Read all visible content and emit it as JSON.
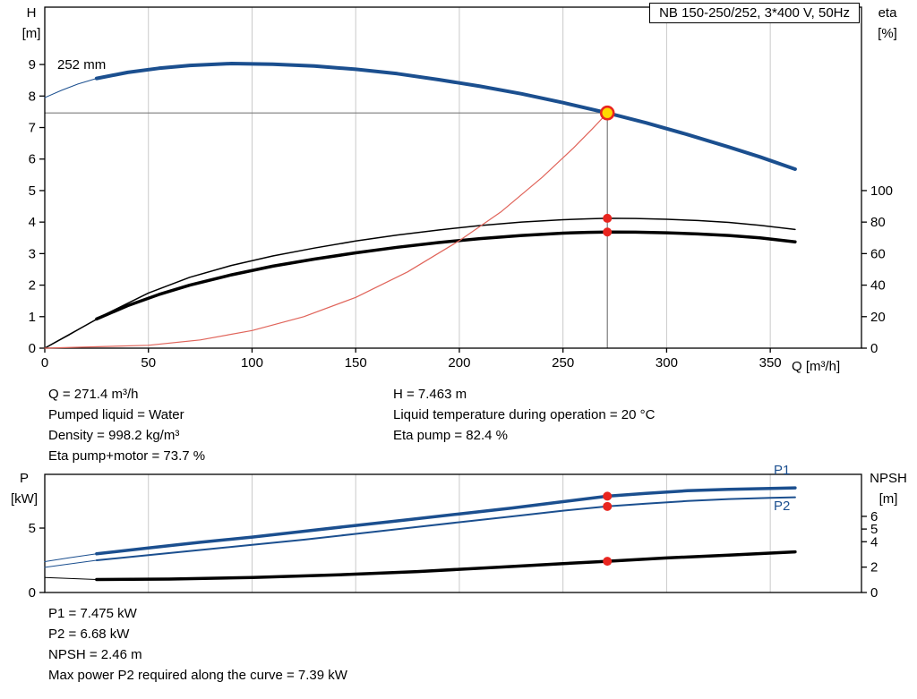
{
  "title_box": {
    "label": "NB 150-250/252, 3*400 V, 50Hz"
  },
  "colors": {
    "curve_blue": "#1b4f8f",
    "curve_black": "#000000",
    "curve_red": "#e0645a",
    "dot_red": "#e8251f",
    "op_fill": "#ffd800",
    "grid": "#c9c9c9",
    "op_line": "#7b7b7b",
    "axis": "#000000"
  },
  "labels": {
    "impeller": "252 mm",
    "h_title": "H",
    "h_unit": "[m]",
    "eta_title": "eta",
    "eta_unit": "[%]",
    "x_axis": "Q [m³/h]",
    "p_title": "P",
    "p_unit": "[kW]",
    "npsh_title": "NPSH",
    "npsh_unit": "[m]",
    "p1": "P1",
    "p2": "P2"
  },
  "info": {
    "left": [
      "Q = 271.4 m³/h",
      "Pumped liquid = Water",
      "Density = 998.2 kg/m³",
      "Eta pump+motor = 73.7 %"
    ],
    "right": [
      "H = 7.463 m",
      "Liquid temperature during operation = 20 °C",
      "Eta pump = 82.4 %"
    ],
    "bottom": [
      "P1 = 7.475 kW",
      "P2 = 6.68 kW",
      "NPSH = 2.46 m",
      "Max power P2 required along the curve = 7.39 kW"
    ]
  },
  "chart_data": [
    {
      "id": "qh-eta-chart",
      "type": "line",
      "title": "NB 150-250/252, 3*400 V, 50Hz",
      "xlabel": "Q [m³/h]",
      "ylabel": "H [m]",
      "y2label": "eta [%]",
      "xlim": [
        0,
        394
      ],
      "ylim": [
        0,
        10.82
      ],
      "y2lim": [
        0,
        216.4
      ],
      "x_ticks": [
        0,
        50,
        100,
        150,
        200,
        250,
        300,
        350
      ],
      "y_ticks": [
        0,
        1,
        2,
        3,
        4,
        5,
        6,
        7,
        8,
        9
      ],
      "y2_ticks": [
        0,
        20,
        40,
        60,
        80,
        100
      ],
      "show_x_labels": true,
      "grid": "vertical",
      "legend_position": "none",
      "operating_point": {
        "q": 271.4,
        "h": 7.463
      },
      "series": [
        {
          "name": "head-252mm-lead",
          "axis": "y",
          "color": "blue",
          "width": 1,
          "points": [
            [
              0,
              7.95
            ],
            [
              8,
              8.18
            ],
            [
              16,
              8.38
            ],
            [
              25,
              8.56
            ]
          ]
        },
        {
          "name": "head-252mm",
          "axis": "y",
          "color": "blue",
          "width": 4,
          "points": [
            [
              25,
              8.56
            ],
            [
              40,
              8.75
            ],
            [
              55,
              8.88
            ],
            [
              70,
              8.97
            ],
            [
              90,
              9.03
            ],
            [
              110,
              9.01
            ],
            [
              130,
              8.95
            ],
            [
              150,
              8.85
            ],
            [
              170,
              8.71
            ],
            [
              190,
              8.52
            ],
            [
              210,
              8.31
            ],
            [
              230,
              8.07
            ],
            [
              250,
              7.79
            ],
            [
              271.4,
              7.463
            ],
            [
              290,
              7.15
            ],
            [
              310,
              6.78
            ],
            [
              330,
              6.38
            ],
            [
              345,
              6.07
            ],
            [
              362,
              5.68
            ]
          ]
        },
        {
          "name": "eta-pump",
          "axis": "y2",
          "color": "black",
          "width": 1.5,
          "points": [
            [
              0,
              0
            ],
            [
              15,
              11
            ],
            [
              30,
              22
            ],
            [
              50,
              35
            ],
            [
              70,
              45
            ],
            [
              90,
              52.5
            ],
            [
              110,
              58.5
            ],
            [
              130,
              63.5
            ],
            [
              150,
              68
            ],
            [
              170,
              71.8
            ],
            [
              190,
              75
            ],
            [
              210,
              77.8
            ],
            [
              230,
              80
            ],
            [
              250,
              81.5
            ],
            [
              262,
              82.1
            ],
            [
              271.4,
              82.4
            ],
            [
              285,
              82.3
            ],
            [
              300,
              81.8
            ],
            [
              315,
              81
            ],
            [
              330,
              79.8
            ],
            [
              345,
              78
            ],
            [
              362,
              75.3
            ]
          ]
        },
        {
          "name": "eta-pump-motor-lead",
          "axis": "y2",
          "color": "black",
          "width": 1,
          "points": [
            [
              0,
              0
            ],
            [
              12,
              8.5
            ],
            [
              25,
              18.5
            ]
          ]
        },
        {
          "name": "eta-pump-motor",
          "axis": "y2",
          "color": "black",
          "width": 3.5,
          "points": [
            [
              25,
              18.5
            ],
            [
              40,
              27
            ],
            [
              55,
              34
            ],
            [
              70,
              40
            ],
            [
              90,
              46.5
            ],
            [
              110,
              52
            ],
            [
              130,
              56.5
            ],
            [
              150,
              60.5
            ],
            [
              170,
              64
            ],
            [
              190,
              67
            ],
            [
              210,
              69.5
            ],
            [
              230,
              71.5
            ],
            [
              250,
              73
            ],
            [
              262,
              73.5
            ],
            [
              271.4,
              73.7
            ],
            [
              285,
              73.6
            ],
            [
              300,
              73.2
            ],
            [
              315,
              72.5
            ],
            [
              330,
              71.5
            ],
            [
              345,
              70
            ],
            [
              362,
              67.5
            ]
          ]
        },
        {
          "name": "system-curve",
          "axis": "y",
          "color": "red",
          "width": 1.2,
          "points": [
            [
              0,
              0
            ],
            [
              50,
              0.09
            ],
            [
              75,
              0.26
            ],
            [
              100,
              0.56
            ],
            [
              125,
              1.0
            ],
            [
              150,
              1.61
            ],
            [
              175,
              2.42
            ],
            [
              200,
              3.41
            ],
            [
              220,
              4.32
            ],
            [
              240,
              5.42
            ],
            [
              255,
              6.35
            ],
            [
              264,
              6.95
            ],
            [
              271.4,
              7.463
            ]
          ]
        }
      ],
      "markers": [
        {
          "type": "op",
          "q": 271.4,
          "value": 7.463,
          "axis": "y"
        },
        {
          "type": "dot",
          "q": 271.4,
          "value": 82.4,
          "axis": "y2"
        },
        {
          "type": "dot",
          "q": 271.4,
          "value": 73.7,
          "axis": "y2"
        }
      ]
    },
    {
      "id": "power-npsh-chart",
      "type": "line",
      "ylabel": "P [kW]",
      "y2label": "NPSH [m]",
      "xlim": [
        0,
        394
      ],
      "ylim": [
        0,
        9.17
      ],
      "y2lim": [
        0,
        9.31
      ],
      "x_ticks": [
        0,
        50,
        100,
        150,
        200,
        250,
        300,
        350
      ],
      "y_ticks": [
        0,
        5
      ],
      "y2_ticks": [
        0,
        2,
        4,
        5,
        6
      ],
      "show_x_labels": false,
      "grid": "vertical",
      "series": [
        {
          "name": "p1-lead",
          "axis": "y",
          "color": "blue",
          "width": 1,
          "points": [
            [
              0,
              2.4
            ],
            [
              12,
              2.7
            ],
            [
              25,
              3.0
            ]
          ]
        },
        {
          "name": "p1",
          "axis": "y",
          "color": "blue",
          "width": 3.5,
          "points": [
            [
              25,
              3.0
            ],
            [
              50,
              3.45
            ],
            [
              75,
              3.9
            ],
            [
              100,
              4.3
            ],
            [
              125,
              4.75
            ],
            [
              150,
              5.2
            ],
            [
              175,
              5.65
            ],
            [
              200,
              6.1
            ],
            [
              225,
              6.55
            ],
            [
              250,
              7.05
            ],
            [
              271.4,
              7.475
            ],
            [
              290,
              7.7
            ],
            [
              310,
              7.9
            ],
            [
              330,
              8.0
            ],
            [
              350,
              8.08
            ],
            [
              362,
              8.12
            ]
          ]
        },
        {
          "name": "p2-lead",
          "axis": "y",
          "color": "blue",
          "width": 1,
          "points": [
            [
              0,
              1.95
            ],
            [
              25,
              2.5
            ]
          ]
        },
        {
          "name": "p2",
          "axis": "y",
          "color": "blue",
          "width": 2,
          "points": [
            [
              25,
              2.5
            ],
            [
              50,
              2.9
            ],
            [
              75,
              3.3
            ],
            [
              100,
              3.7
            ],
            [
              125,
              4.1
            ],
            [
              150,
              4.55
            ],
            [
              175,
              5.0
            ],
            [
              200,
              5.45
            ],
            [
              225,
              5.9
            ],
            [
              250,
              6.35
            ],
            [
              271.4,
              6.68
            ],
            [
              290,
              6.9
            ],
            [
              310,
              7.1
            ],
            [
              330,
              7.25
            ],
            [
              350,
              7.35
            ],
            [
              362,
              7.39
            ]
          ]
        },
        {
          "name": "npsh-lead",
          "axis": "y2",
          "color": "black",
          "width": 1,
          "points": [
            [
              0,
              1.18
            ],
            [
              25,
              1.02
            ]
          ]
        },
        {
          "name": "npsh",
          "axis": "y2",
          "color": "black",
          "width": 3.5,
          "points": [
            [
              25,
              1.02
            ],
            [
              60,
              1.06
            ],
            [
              100,
              1.18
            ],
            [
              140,
              1.38
            ],
            [
              180,
              1.65
            ],
            [
              220,
              2.0
            ],
            [
              250,
              2.28
            ],
            [
              271.4,
              2.46
            ],
            [
              300,
              2.72
            ],
            [
              330,
              2.95
            ],
            [
              362,
              3.2
            ]
          ]
        }
      ],
      "markers": [
        {
          "type": "dot",
          "q": 271.4,
          "value": 7.475,
          "axis": "y"
        },
        {
          "type": "dot",
          "q": 271.4,
          "value": 6.68,
          "axis": "y"
        },
        {
          "type": "dot",
          "q": 271.4,
          "value": 2.46,
          "axis": "y2"
        }
      ]
    }
  ]
}
